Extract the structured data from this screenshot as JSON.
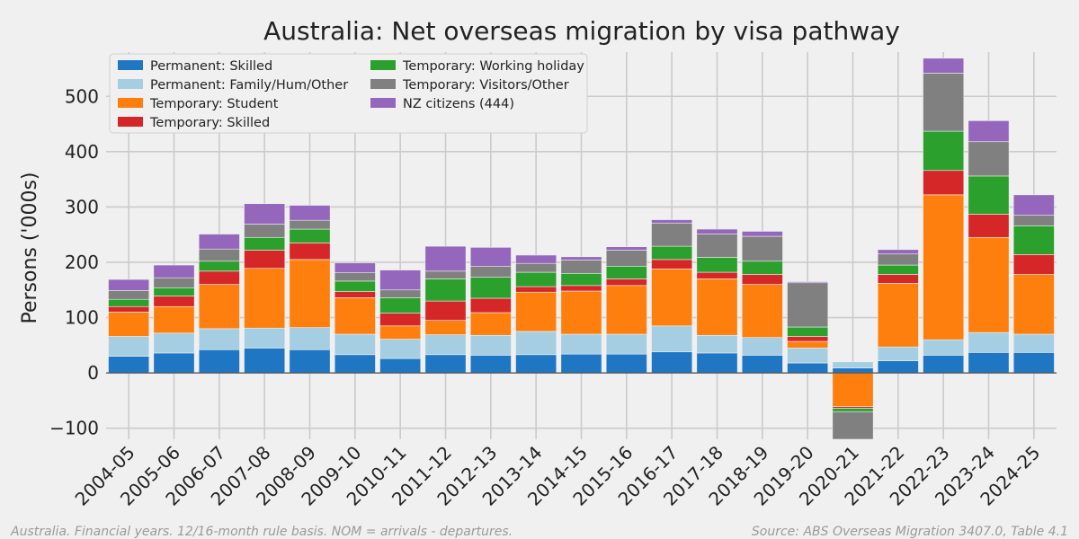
{
  "chart_data": {
    "type": "bar",
    "stacked": true,
    "title": "Australia: Net overseas migration by visa pathway",
    "xlabel": "",
    "ylabel": "Persons ('000s)",
    "ylim": [
      -120,
      580
    ],
    "yticks": [
      -100,
      0,
      100,
      200,
      300,
      400,
      500
    ],
    "ytick_labels": [
      "−100",
      "0",
      "100",
      "200",
      "300",
      "400",
      "500"
    ],
    "grid": true,
    "legend_position": "top-left",
    "categories": [
      "2004-05",
      "2005-06",
      "2006-07",
      "2007-08",
      "2008-09",
      "2009-10",
      "2010-11",
      "2011-12",
      "2012-13",
      "2013-14",
      "2014-15",
      "2015-16",
      "2016-17",
      "2017-18",
      "2018-19",
      "2019-20",
      "2020-21",
      "2021-22",
      "2022-23",
      "2023-24",
      "2024-25"
    ],
    "series": [
      {
        "name": "Permanent: Skilled",
        "color": "#1f77c4",
        "values": [
          30,
          36,
          42,
          45,
          42,
          33,
          26,
          33,
          32,
          33,
          34,
          34,
          38,
          36,
          32,
          18,
          9,
          22,
          32,
          37,
          37
        ]
      },
      {
        "name": "Permanent: Family/Hum/Other",
        "color": "#a6cee3",
        "values": [
          36,
          36,
          38,
          36,
          40,
          37,
          35,
          36,
          36,
          42,
          36,
          36,
          47,
          32,
          32,
          27,
          11,
          25,
          28,
          36,
          33
        ]
      },
      {
        "name": "Temporary: Student",
        "color": "#ff7f0e",
        "values": [
          44,
          48,
          80,
          108,
          123,
          66,
          24,
          26,
          41,
          71,
          78,
          88,
          103,
          102,
          96,
          12,
          -61,
          115,
          262,
          172,
          108
        ]
      },
      {
        "name": "Temporary: Skilled",
        "color": "#d62728",
        "values": [
          10,
          19,
          24,
          33,
          30,
          11,
          23,
          35,
          26,
          10,
          10,
          12,
          17,
          12,
          18,
          9,
          -3,
          16,
          44,
          42,
          36
        ]
      },
      {
        "name": "Temporary: Working holiday",
        "color": "#2ca02c",
        "values": [
          13,
          15,
          18,
          23,
          25,
          19,
          28,
          40,
          38,
          26,
          22,
          23,
          24,
          27,
          24,
          17,
          -6,
          17,
          71,
          69,
          52
        ]
      },
      {
        "name": "Temporary: Visitors/Other",
        "color": "#808080",
        "values": [
          16,
          18,
          22,
          24,
          16,
          15,
          14,
          14,
          20,
          16,
          24,
          29,
          42,
          42,
          45,
          80,
          -50,
          20,
          105,
          62,
          19
        ]
      },
      {
        "name": "NZ citizens (444)",
        "color": "#9467bd",
        "values": [
          20,
          23,
          27,
          37,
          27,
          18,
          36,
          45,
          34,
          15,
          6,
          6,
          6,
          9,
          9,
          2,
          0,
          8,
          27,
          38,
          37
        ]
      }
    ]
  },
  "footer": {
    "left": "Australia. Financial years. 12/16-month rule basis. NOM = arrivals - departures.",
    "right": "Source: ABS Overseas Migration 3407.0, Table 4.1"
  }
}
